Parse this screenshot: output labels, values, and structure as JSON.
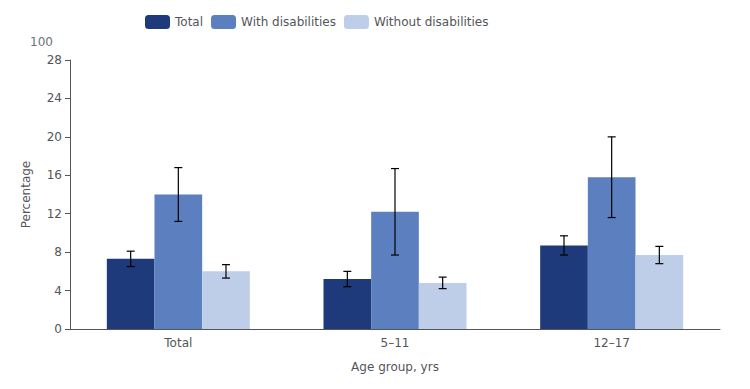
{
  "chart_data": {
    "type": "bar",
    "categories": [
      "Total",
      "5–11",
      "12–17"
    ],
    "series": [
      {
        "name": "Total",
        "color": "#1F3A7A",
        "values": [
          7.3,
          5.2,
          8.7
        ],
        "errors": [
          0.8,
          0.8,
          1.0
        ]
      },
      {
        "name": "With disabilities",
        "color": "#5B7FBF",
        "values": [
          14.0,
          12.2,
          15.8
        ],
        "errors": [
          2.8,
          4.5,
          4.2
        ]
      },
      {
        "name": "Without disabilities",
        "color": "#BECDE8",
        "values": [
          6.0,
          4.8,
          7.7
        ],
        "errors": [
          0.7,
          0.6,
          0.9
        ]
      }
    ],
    "xlabel": "Age group, yrs",
    "ylabel": "Percentage",
    "ylim": [
      0,
      28
    ],
    "yticks": [
      0,
      4,
      8,
      12,
      16,
      20,
      24,
      28
    ],
    "annotations": [
      "100"
    ],
    "legend": "upper left",
    "grid": false
  }
}
